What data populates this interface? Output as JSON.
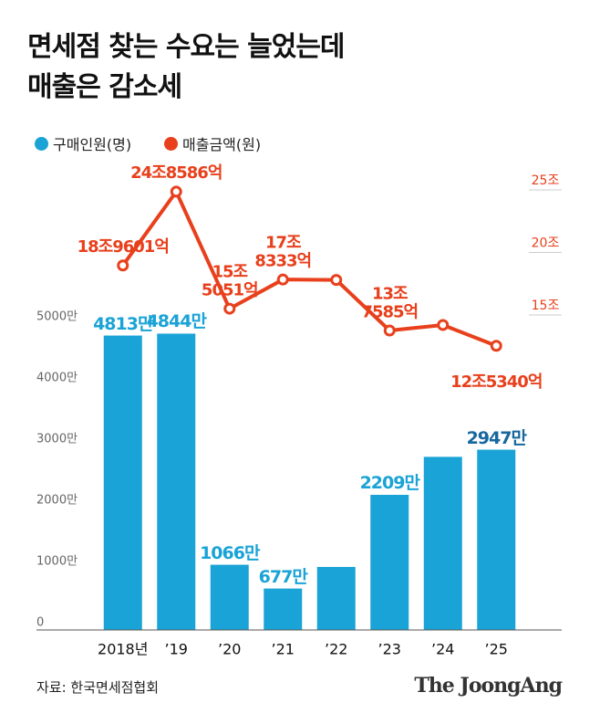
{
  "chart_data": {
    "type": "bar_line",
    "title": "면세점 찾는 수요는 늘었는데\n매출은 감소세",
    "categories": [
      "2018년",
      "’19",
      "’20",
      "’21",
      "’22",
      "’23",
      "’24",
      "’25"
    ],
    "series": [
      {
        "name": "구매인원(명)",
        "color": "#1aa3d6",
        "type": "bar",
        "values": [
          4813,
          4844,
          1066,
          677,
          1030,
          2209,
          2830,
          2947
        ],
        "value_labels": [
          "4813만",
          "4844만",
          "1066만",
          "677만",
          null,
          "2209만",
          null,
          "2947만"
        ]
      },
      {
        "name": "매출금액(원)",
        "color": "#e8401c",
        "type": "line",
        "axis": "y2",
        "values": [
          18.9601,
          24.8586,
          15.5051,
          17.8333,
          17.8,
          13.7585,
          14.2,
          12.534
        ],
        "value_labels": [
          "18조9601억",
          "24조8586억",
          "15조\n5051억",
          "17조\n8333억",
          null,
          "13조\n7585억",
          null,
          "12조5340억"
        ]
      }
    ],
    "ylim": [
      0,
      5000
    ],
    "yticks": [
      0,
      {
        "value": 1000,
        "label": "1000만"
      },
      {
        "value": 2000,
        "label": "2000만"
      },
      {
        "value": 3000,
        "label": "3000만"
      },
      {
        "value": 4000,
        "label": "4000만"
      },
      {
        "value": 5000,
        "label": "5000만"
      }
    ],
    "y2lim": [
      10,
      25
    ],
    "y2ticks": [
      {
        "value": 15,
        "label": "15조"
      },
      {
        "value": 20,
        "label": "20조"
      },
      {
        "value": 25,
        "label": "25조"
      }
    ],
    "source": "자료: 한국면세점협회",
    "brand": "The JoongAng"
  }
}
